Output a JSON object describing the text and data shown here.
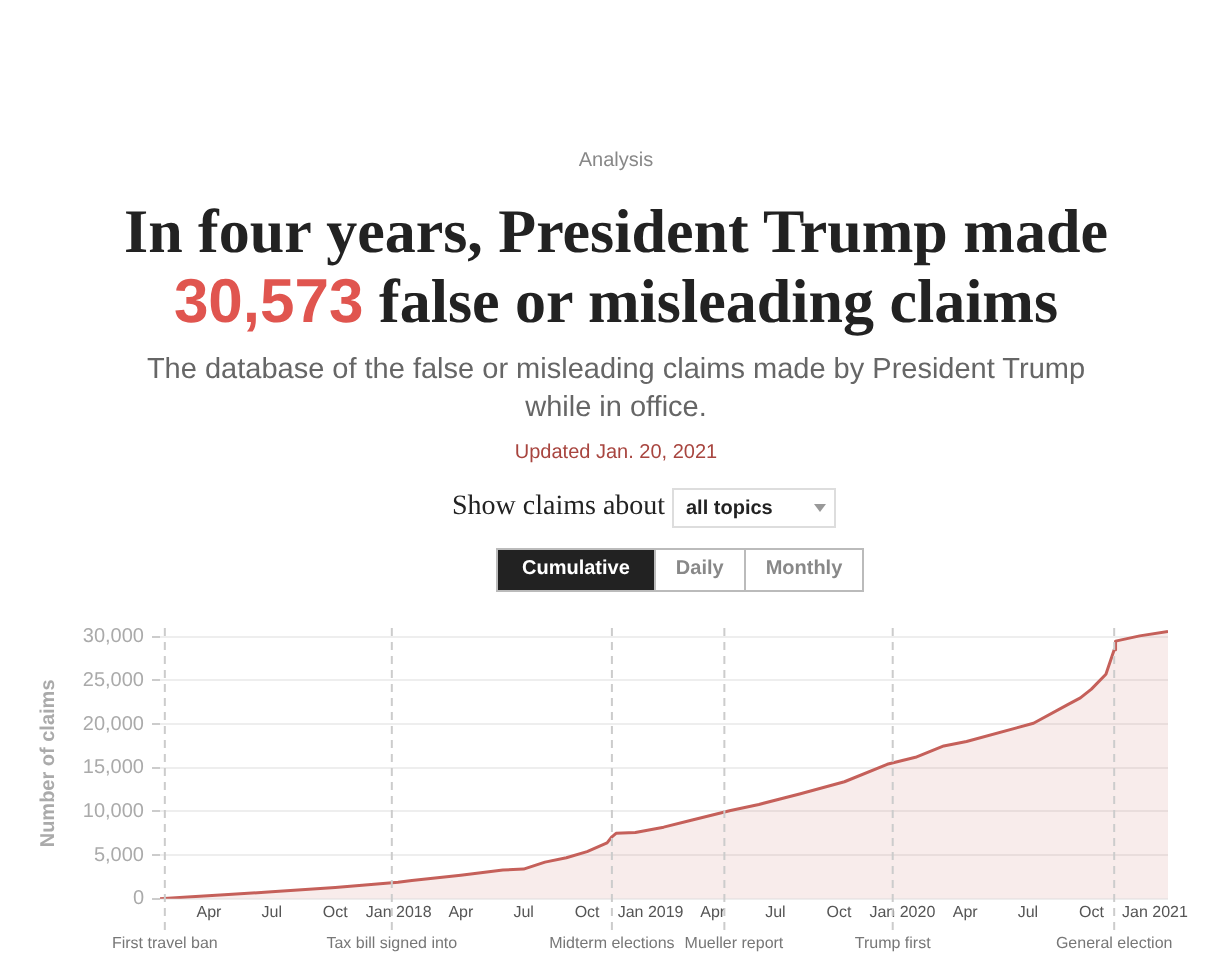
{
  "chart_data": {
    "type": "area",
    "title": "In four years, President Trump made 30,573 false or misleading claims",
    "subtitle": "The database of the false or misleading claims made by President Trump while in office.",
    "annotations": [
      "Analysis",
      "Updated Jan. 20, 2021",
      "Show claims about",
      "all topics",
      "Cumulative",
      "Daily",
      "Monthly"
    ],
    "ylabel": "Number of claims",
    "x": [
      "2017-01-20",
      "2017-03-01",
      "2017-04-29",
      "2017-07-01",
      "2017-10-01",
      "2017-12-31",
      "2018-01-20",
      "2018-04-01",
      "2018-06-01",
      "2018-07-01",
      "2018-08-01",
      "2018-09-01",
      "2018-10-01",
      "2018-10-30",
      "2018-11-06",
      "2018-11-12",
      "2018-12-10",
      "2019-01-20",
      "2019-03-01",
      "2019-04-27",
      "2019-06-07",
      "2019-08-05",
      "2019-10-09",
      "2019-12-10",
      "2020-01-20",
      "2020-03-01",
      "2020-04-03",
      "2020-07-09",
      "2020-08-27",
      "2020-09-15",
      "2020-10-01",
      "2020-10-22",
      "2020-11-03",
      "2020-11-05",
      "2020-12-10",
      "2021-01-20"
    ],
    "series": [
      {
        "color": "#c5605a",
        "values": [
          0,
          200,
          500,
          800,
          1300,
          1900,
          2100,
          2700,
          3300,
          3400,
          4200,
          4700,
          5400,
          6400,
          7100,
          7500,
          7600,
          8200,
          9000,
          10100,
          10800,
          12000,
          13400,
          15400,
          16200,
          17500,
          18000,
          20100,
          22200,
          23000,
          24000,
          25700,
          28500,
          29500,
          30100,
          30600
        ]
      }
    ],
    "xlim": [
      "2017-01-20",
      "2021-01-20"
    ],
    "xticks": [
      {
        "value": "2017-04-01",
        "label": "Apr"
      },
      {
        "value": "2017-07-01",
        "label": "Jul"
      },
      {
        "value": "2017-10-01",
        "label": "Oct"
      },
      {
        "value": "2018-01-01",
        "label": "Jan 2018"
      },
      {
        "value": "2018-04-01",
        "label": "Apr"
      },
      {
        "value": "2018-07-01",
        "label": "Jul"
      },
      {
        "value": "2018-10-01",
        "label": "Oct"
      },
      {
        "value": "2019-01-01",
        "label": "Jan 2019"
      },
      {
        "value": "2019-04-01",
        "label": "Apr"
      },
      {
        "value": "2019-07-01",
        "label": "Jul"
      },
      {
        "value": "2019-10-01",
        "label": "Oct"
      },
      {
        "value": "2020-01-01",
        "label": "Jan 2020"
      },
      {
        "value": "2020-04-01",
        "label": "Apr"
      },
      {
        "value": "2020-07-01",
        "label": "Jul"
      },
      {
        "value": "2020-10-01",
        "label": "Oct"
      },
      {
        "value": "2021-01-01",
        "label": "Jan 2021"
      }
    ],
    "ylim": [
      0,
      31000
    ],
    "yticks": [
      {
        "value": 0,
        "label": "0"
      },
      {
        "value": 5000,
        "label": "5,000"
      },
      {
        "value": 10000,
        "label": "10,000"
      },
      {
        "value": 15000,
        "label": "15,000"
      },
      {
        "value": 20000,
        "label": "20,000"
      },
      {
        "value": 25000,
        "label": "25,000"
      },
      {
        "value": 30000,
        "label": "30,000"
      }
    ],
    "grid": "y",
    "legend": false,
    "marker": "none",
    "line_style": "solid",
    "ref_lines": [
      {
        "axis": "x",
        "value": "2017-01-27",
        "label": "First travel ban",
        "line_style": "dashed"
      },
      {
        "axis": "x",
        "value": "2017-12-22",
        "label": "Tax bill signed into",
        "line_style": "dashed"
      },
      {
        "axis": "x",
        "value": "2018-11-06",
        "label": "Midterm elections",
        "line_style": "dashed"
      },
      {
        "axis": "x",
        "value": "2019-04-18",
        "label": "Mueller report",
        "line_style": "dashed"
      },
      {
        "axis": "x",
        "value": "2019-12-18",
        "label": "Trump first",
        "line_style": "dashed"
      },
      {
        "axis": "x",
        "value": "2020-11-03",
        "label": "General election",
        "line_style": "dashed"
      }
    ]
  }
}
